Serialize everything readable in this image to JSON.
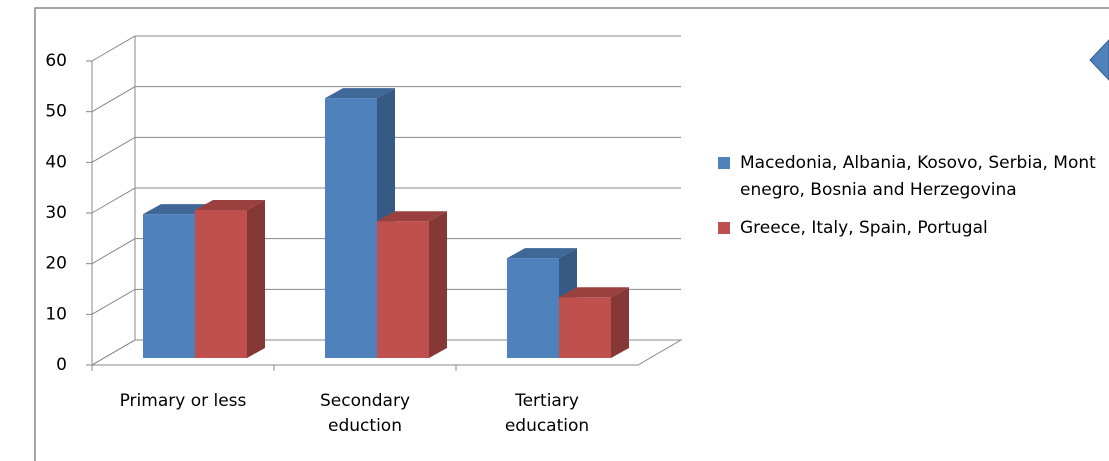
{
  "chart_data": {
    "type": "bar3d",
    "categories": [
      "Primary or less",
      "Secondary eduction",
      "Tertiary education"
    ],
    "series": [
      {
        "name": "Macedonia, Albania, Kosovo, Serbia, Montenegro, Bosnia and Herzegovina",
        "color": "#4f81bd",
        "values": [
          28.4,
          51.3,
          19.7
        ]
      },
      {
        "name": "Greece, Italy, Spain, Portugal",
        "color": "#c0504d",
        "values": [
          29.2,
          27,
          12
        ]
      }
    ],
    "ylim": [
      0,
      60
    ],
    "yticks": [
      0,
      10,
      20,
      30,
      40,
      50,
      60
    ],
    "grid": true,
    "legend": "right"
  }
}
